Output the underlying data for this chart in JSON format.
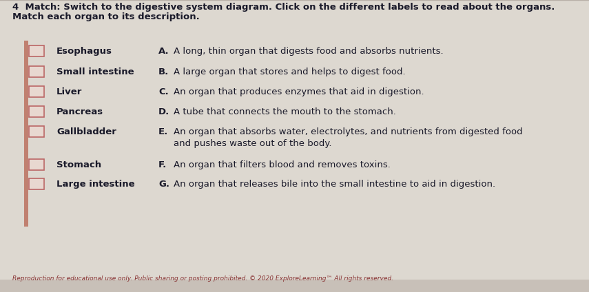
{
  "background_color": "#c8c0b8",
  "content_bg": "#e8e0d8",
  "title_line1": "4  Match: Switch to the digestive system diagram. Click on the different labels to read about the organs.",
  "title_line2": "Match each organ to its description.",
  "organs": [
    "Esophagus",
    "Small intestine",
    "Liver",
    "Pancreas",
    "Gallbladder",
    "Stomach",
    "Large intestine"
  ],
  "letters": [
    "A.",
    "B.",
    "C.",
    "D.",
    "E.",
    "F.",
    "G."
  ],
  "descriptions": [
    "A long, thin organ that digests food and absorbs nutrients.",
    "A large organ that stores and helps to digest food.",
    "An organ that produces enzymes that aid in digestion.",
    "A tube that connects the mouth to the stomach.",
    "An organ that absorbs water, electrolytes, and nutrients from digested food\nand pushes waste out of the body.",
    "An organ that filters blood and removes toxins.",
    "An organ that releases bile into the small intestine to aid in digestion."
  ],
  "footer": "Reproduction for educational use only. Public sharing or posting prohibited. © 2020 ExploreLearning™ All rights reserved.",
  "title_fontsize": 9.5,
  "organ_fontsize": 9.5,
  "desc_fontsize": 9.5,
  "footer_fontsize": 6.5,
  "text_color": "#1a1a2a",
  "footer_color": "#883333",
  "answer_box_color": "#e8d8d0",
  "answer_box_border": "#bb6666",
  "left_stripe_color": "#c08070"
}
